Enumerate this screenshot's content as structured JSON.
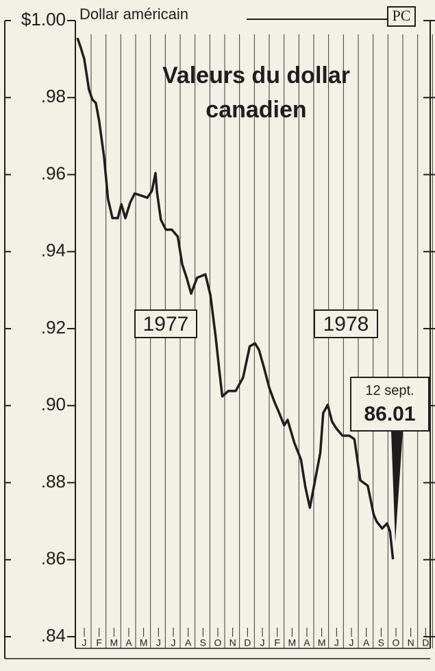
{
  "chart_data": {
    "type": "line",
    "title": "Valeurs du dollar canadien",
    "title_lines": [
      "Valeurs du dollar",
      "canadien"
    ],
    "y_axis_label": "Dollar américain",
    "logo": "PC",
    "annotations": [
      "1977",
      "1978",
      "12 sept.",
      "86.01"
    ],
    "xlim": [
      0,
      24
    ],
    "xticks": [
      {
        "value": 0.6,
        "label": "J"
      },
      {
        "value": 1.6,
        "label": "F"
      },
      {
        "value": 2.6,
        "label": "M"
      },
      {
        "value": 3.6,
        "label": "A"
      },
      {
        "value": 4.6,
        "label": "M"
      },
      {
        "value": 5.6,
        "label": "J"
      },
      {
        "value": 6.6,
        "label": "J"
      },
      {
        "value": 7.6,
        "label": "A"
      },
      {
        "value": 8.6,
        "label": "S"
      },
      {
        "value": 9.6,
        "label": "O"
      },
      {
        "value": 10.6,
        "label": "N"
      },
      {
        "value": 11.6,
        "label": "D"
      },
      {
        "value": 12.6,
        "label": "J"
      },
      {
        "value": 13.6,
        "label": "F"
      },
      {
        "value": 14.6,
        "label": "M"
      },
      {
        "value": 15.6,
        "label": "A"
      },
      {
        "value": 16.6,
        "label": "M"
      },
      {
        "value": 17.6,
        "label": "J"
      },
      {
        "value": 18.6,
        "label": "J"
      },
      {
        "value": 19.6,
        "label": "A"
      },
      {
        "value": 20.6,
        "label": "S"
      },
      {
        "value": 21.6,
        "label": "O"
      },
      {
        "value": 22.6,
        "label": "N"
      },
      {
        "value": 23.6,
        "label": "D"
      }
    ],
    "ylim": [
      0.84,
      1.0
    ],
    "yticks": [
      {
        "value": 1.0,
        "label": "$1.00"
      },
      {
        "value": 0.98,
        "label": ".98"
      },
      {
        "value": 0.96,
        "label": ".96"
      },
      {
        "value": 0.94,
        "label": ".94"
      },
      {
        "value": 0.92,
        "label": ".92"
      },
      {
        "value": 0.9,
        "label": ".90"
      },
      {
        "value": 0.88,
        "label": ".88"
      },
      {
        "value": 0.86,
        "label": ".86"
      },
      {
        "value": 0.84,
        "label": ".84"
      }
    ],
    "x": [
      0.14,
      0.37,
      0.6,
      0.92,
      1.15,
      1.38,
      1.6,
      1.94,
      2.2,
      2.5,
      2.86,
      3.1,
      3.37,
      3.7,
      4.0,
      4.4,
      4.85,
      5.16,
      5.4,
      5.5,
      5.76,
      6.1,
      6.5,
      6.9,
      7.2,
      7.5,
      7.8,
      8.2,
      8.76,
      9.1,
      9.45,
      9.7,
      9.9,
      10.3,
      10.8,
      11.3,
      11.75,
      12.1,
      12.37,
      12.7,
      13.06,
      13.4,
      13.7,
      14.07,
      14.3,
      14.75,
      15.2,
      15.5,
      15.8,
      16.15,
      16.5,
      16.7,
      17.0,
      17.3,
      17.6,
      18.0,
      18.46,
      18.8,
      19.2,
      19.7,
      20.1,
      20.3,
      20.67,
      21.0,
      21.2,
      21.4
    ],
    "series": [
      {
        "color": "#1e1e1e",
        "values": [
          0.9955,
          0.9929,
          0.99,
          0.982,
          0.9795,
          0.9786,
          0.974,
          0.9644,
          0.9537,
          0.9487,
          0.9487,
          0.9523,
          0.9487,
          0.9528,
          0.9551,
          0.9546,
          0.954,
          0.9558,
          0.9604,
          0.9555,
          0.9483,
          0.9457,
          0.9457,
          0.9439,
          0.9367,
          0.9332,
          0.9291,
          0.9332,
          0.9341,
          0.9287,
          0.918,
          0.9091,
          0.9024,
          0.9038,
          0.9038,
          0.9073,
          0.9154,
          0.9162,
          0.9145,
          0.91,
          0.9047,
          0.9011,
          0.8984,
          0.8949,
          0.8963,
          0.8904,
          0.886,
          0.8788,
          0.8735,
          0.8806,
          0.8877,
          0.8981,
          0.9002,
          0.8958,
          0.894,
          0.8922,
          0.8922,
          0.8913,
          0.8806,
          0.8792,
          0.8717,
          0.8699,
          0.8681,
          0.8694,
          0.8673,
          0.8601
        ]
      }
    ]
  }
}
